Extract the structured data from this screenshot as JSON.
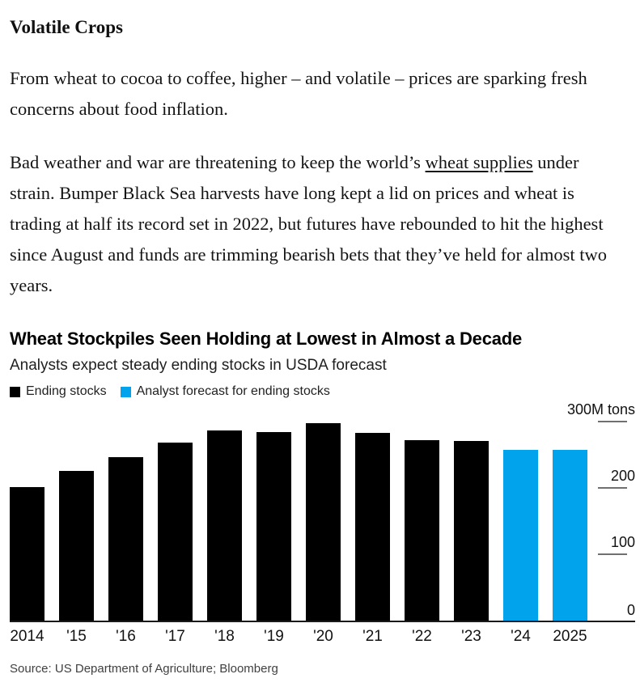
{
  "article": {
    "heading": "Volatile Crops",
    "paragraph1": "From wheat to cocoa to coffee, higher – and volatile – prices are sparking fresh concerns about food inflation.",
    "paragraph2": {
      "before_link": "Bad weather and war are threatening to keep the world’s ",
      "link_text": "wheat supplies",
      "after_link": " under strain. Bumper Black Sea harvests have long kept a lid on prices and wheat is trading at half its record set in 2022, but futures have rebounded to hit the highest since August and funds are trimming bearish bets that they’ve held for almost two years."
    }
  },
  "chart": {
    "title": "Wheat Stockpiles Seen Holding at Lowest in Almost a Decade",
    "subtitle": "Analysts expect steady ending stocks in USDA forecast",
    "legend": [
      {
        "label": "Ending stocks",
        "color": "#000000"
      },
      {
        "label": "Analyst forecast for ending stocks",
        "color": "#00a3ec"
      }
    ],
    "source": "Source: US Department of Agriculture; Bloomberg"
  },
  "chart_data": {
    "type": "bar",
    "title": "Wheat Stockpiles Seen Holding at Lowest in Almost a Decade",
    "subtitle": "Analysts expect steady ending stocks in USDA forecast",
    "unit": "M tons",
    "categories": [
      "2014",
      "'15",
      "'16",
      "'17",
      "'18",
      "'19",
      "'20",
      "'21",
      "'22",
      "'23",
      "'24",
      "2025"
    ],
    "series": [
      {
        "name": "Ending stocks",
        "color": "#000000",
        "values": [
          201,
          226,
          246,
          268,
          287,
          284,
          298,
          283,
          272,
          271,
          null,
          null
        ]
      },
      {
        "name": "Analyst forecast for ending stocks",
        "color": "#00a3ec",
        "values": [
          null,
          null,
          null,
          null,
          null,
          null,
          null,
          null,
          null,
          null,
          257,
          257
        ]
      }
    ],
    "ylim": [
      0,
      300
    ],
    "yticks": [
      {
        "value": 300,
        "label": "300M tons"
      },
      {
        "value": 200,
        "label": "200"
      },
      {
        "value": 100,
        "label": "100"
      },
      {
        "value": 0,
        "label": "0"
      }
    ],
    "grid": false,
    "legend_position": "top-left",
    "axis_side": "right",
    "source": "Source: US Department of Agriculture; Bloomberg"
  }
}
